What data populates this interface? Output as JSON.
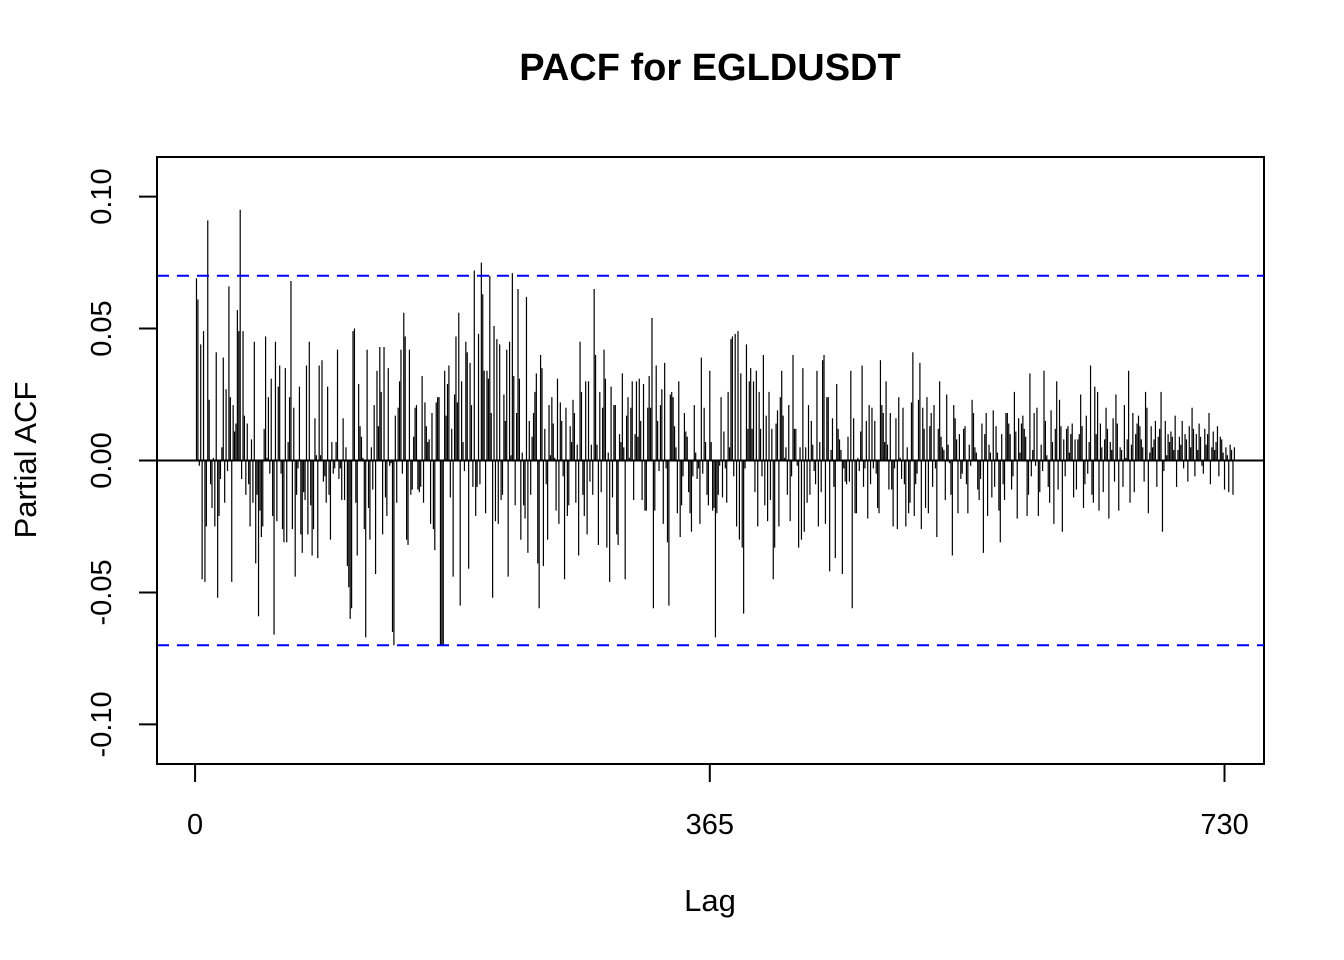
{
  "chart_data": {
    "type": "bar",
    "title": "PACF for EGLDUSDT",
    "xlabel": "Lag",
    "ylabel": "Partial ACF",
    "xlim": [
      -27,
      758
    ],
    "ylim": [
      -0.115,
      0.115
    ],
    "x_ticks": [
      0,
      365,
      730
    ],
    "x_tick_labels": [
      "0",
      "365",
      "730"
    ],
    "y_ticks": [
      -0.1,
      -0.05,
      0.0,
      0.05,
      0.1
    ],
    "y_tick_labels": [
      "-0.10",
      "-0.05",
      "0.00",
      "0.05",
      "0.10"
    ],
    "confidence_bounds": [
      0.07,
      -0.07
    ],
    "bound_color": "#0000ff",
    "bar_color": "#000000",
    "grid": false,
    "lag_start": 1,
    "lag_end": 730,
    "values": [
      0.069,
      0.061,
      -0.002,
      0.044,
      -0.045,
      0.049,
      -0.046,
      -0.025,
      0.091,
      0.023,
      -0.009,
      -0.018,
      0.001,
      -0.025,
      0.041,
      -0.052,
      -0.021,
      -0.007,
      0.005,
      0.039,
      -0.016,
      0.027,
      -0.004,
      0.066,
      0.024,
      -0.046,
      0.021,
      0.011,
      0.014,
      0.057,
      0.049,
      0.095,
      -0.007,
      0.049,
      0.017,
      -0.013,
      0.014,
      -0.009,
      -0.025,
      0.008,
      -0.016,
      0.045,
      -0.039,
      -0.013,
      -0.059,
      -0.019,
      -0.029,
      -0.025,
      0.012,
      0.047,
      0.001,
      0.024,
      -0.005,
      0.031,
      -0.021,
      -0.066,
      0.045,
      -0.023,
      0.028,
      0.036,
      -0.005,
      -0.026,
      -0.031,
      0.035,
      -0.031,
      0.007,
      0.024,
      0.068,
      -0.026,
      0.02,
      -0.044,
      -0.013,
      -0.003,
      0.028,
      -0.028,
      -0.035,
      -0.012,
      -0.015,
      0.036,
      -0.028,
      0.045,
      -0.017,
      -0.036,
      -0.026,
      0.016,
      0.002,
      -0.037,
      0.036,
      0.002,
      0.038,
      -0.008,
      -0.006,
      -0.016,
      0.028,
      -0.013,
      -0.03,
      0.007,
      -0.005,
      -0.003,
      0.007,
      0.042,
      -0.007,
      -0.003,
      -0.015,
      0.016,
      -0.015,
      0.005,
      -0.04,
      -0.048,
      -0.06,
      -0.056,
      0.049,
      0.05,
      -0.016,
      -0.036,
      0.029,
      0.013,
      0.009,
      0.001,
      -0.026,
      -0.067,
      0.042,
      -0.018,
      -0.03,
      0.005,
      -0.011,
      0.021,
      -0.043,
      0.034,
      0.013,
      0.043,
      0.026,
      -0.028,
      0.043,
      -0.014,
      -0.021,
      0.035,
      -0.002,
      -0.001,
      -0.065,
      -0.07,
      0.017,
      -0.016,
      0.02,
      0.03,
      0.042,
      -0.005,
      0.056,
      0.047,
      -0.03,
      -0.032,
      0.042,
      -0.013,
      -0.011,
      0.009,
      0.02,
      0.021,
      -0.011,
      -0.012,
      -0.01,
      0.032,
      -0.016,
      0.022,
      0.013,
      0.007,
      0.008,
      -0.024,
      0.018,
      -0.026,
      -0.034,
      0.022,
      0.024,
      0.024,
      -0.07,
      -0.07,
      -0.07,
      0.034,
      0.017,
      0.029,
      0.036,
      -0.014,
      0.012,
      -0.044,
      0.025,
      0.047,
      0.022,
      0.056,
      -0.055,
      0.03,
      0.007,
      -0.004,
      0.045,
      0.041,
      -0.041,
      0.037,
      0.021,
      -0.01,
      0.072,
      -0.021,
      -0.01,
      0.048,
      -0.009,
      0.075,
      0.063,
      0.034,
      -0.02,
      0.034,
      0.031,
      0.07,
      0.018,
      -0.052,
      0.051,
      -0.023,
      0.046,
      -0.024,
      0.044,
      -0.015,
      -0.013,
      0.025,
      0.015,
      0.042,
      -0.044,
      0.045,
      0.002,
      0.071,
      0.032,
      -0.017,
      0.018,
      0.065,
      0.031,
      -0.03,
      0.003,
      -0.017,
      -0.022,
      0.062,
      -0.035,
      0.015,
      -0.013,
      0.009,
      0.018,
      0.026,
      0.033,
      -0.039,
      -0.056,
      0.04,
      0.035,
      -0.04,
      0.012,
      -0.009,
      -0.03,
      0.021,
      0.002,
      0.024,
      0.014,
      0.001,
      -0.019,
      0.031,
      -0.024,
      0.022,
      0.015,
      -0.006,
      -0.045,
      0.02,
      -0.021,
      -0.017,
      0.013,
      0.007,
      0.023,
      0.018,
      -0.016,
      0.006,
      -0.036,
      0.045,
      0.026,
      -0.013,
      -0.021,
      0.03,
      -0.028,
      0.03,
      -0.008,
      0.006,
      -0.013,
      0.065,
      0.04,
      0.006,
      -0.032,
      0.026,
      -0.012,
      0.02,
      0.042,
      0.031,
      -0.033,
      0.003,
      -0.046,
      0.028,
      -0.014,
      0.021,
      0.021,
      -0.028,
      -0.032,
      0.01,
      0.007,
      0.033,
      0.005,
      -0.045,
      0.017,
      0.024,
      0.001,
      0.02,
      0.03,
      -0.015,
      0.01,
      0.03,
      0.009,
      0.031,
      0.015,
      -0.015,
      0.029,
      -0.019,
      -0.019,
      0.02,
      0.032,
      0.02,
      0.054,
      -0.056,
      -0.019,
      0.036,
      0.015,
      -0.004,
      0.021,
      0.027,
      -0.024,
      0.037,
      -0.003,
      -0.031,
      -0.055,
      0.025,
      0.026,
      0.024,
      0.013,
      0.005,
      -0.02,
      0.03,
      -0.029,
      -0.017,
      -0.006,
      0.018,
      0.011,
      0.009,
      -0.012,
      -0.02,
      -0.027,
      -0.006,
      0.021,
      0.003,
      -0.007,
      -0.003,
      -0.024,
      0.039,
      -0.005,
      0.02,
      0.007,
      -0.013,
      -0.017,
      0.034,
      0.007,
      -0.019,
      -0.018,
      -0.067,
      -0.02,
      -0.013,
      -0.002,
      0.024,
      -0.014,
      0.011,
      -0.003,
      -0.016,
      0.026,
      0.005,
      0.046,
      0.047,
      -0.006,
      0.048,
      -0.025,
      0.049,
      -0.03,
      0.033,
      -0.033,
      -0.058,
      -0.003,
      0.044,
      0.012,
      0.03,
      0.035,
      0.012,
      0.03,
      -0.012,
      0.034,
      -0.025,
      0.026,
      0.012,
      -0.006,
      0.04,
      -0.017,
      0.017,
      -0.023,
      0.026,
      -0.015,
      0.012,
      -0.045,
      -0.033,
      0.014,
      0.019,
      -0.025,
      0.024,
      0.034,
      0.017,
      0.001,
      0.005,
      -0.013,
      0.021,
      -0.023,
      -0.006,
      0.04,
      0.012,
      0.012,
      -0.002,
      -0.033,
      0.005,
      -0.03,
      0.035,
      -0.027,
      0.005,
      -0.016,
      0.021,
      -0.013,
      0.015,
      0.006,
      -0.004,
      -0.009,
      0.034,
      -0.025,
      0.007,
      -0.012,
      0.038,
      0.04,
      -0.024,
      0.024,
      0.024,
      -0.042,
      0.004,
      0.016,
      -0.01,
      -0.037,
      0.029,
      0.012,
      0.008,
      0.004,
      -0.043,
      -0.003,
      -0.008,
      -0.009,
      0.009,
      -0.008,
      0.034,
      -0.056,
      0.016,
      -0.02,
      -0.02,
      0.001,
      -0.004,
      0.011,
      0.036,
      -0.01,
      -0.003,
      0.015,
      -0.022,
      0.021,
      -0.009,
      0.02,
      -0.003,
      0.015,
      -0.005,
      -0.018,
      -0.02,
      0.038,
      0.021,
      0.018,
      0.007,
      0.03,
      0.006,
      -0.011,
      0.018,
      -0.011,
      -0.025,
      -0.003,
      0.016,
      -0.026,
      0.024,
      0.001,
      -0.007,
      0.02,
      -0.009,
      -0.025,
      0.005,
      -0.02,
      -0.016,
      0.022,
      0.041,
      -0.021,
      -0.009,
      -0.005,
      0.023,
      0.037,
      -0.026,
      0.02,
      0.012,
      -0.018,
      0.024,
      -0.02,
      0.013,
      0.018,
      -0.01,
      0.021,
      -0.003,
      -0.029,
      0.012,
      0.03,
      0.009,
      0.005,
      0.004,
      -0.015,
      0.025,
      0.006,
      -0.001,
      -0.013,
      -0.036,
      0.021,
      0.016,
      0.008,
      -0.02,
      0.01,
      -0.007,
      -0.005,
      0.012,
      0.013,
      -0.009,
      -0.02,
      0.006,
      -0.002,
      0.023,
      0.018,
      0.005,
      0.003,
      -0.011,
      -0.015,
      -0.007,
      0.014,
      -0.035,
      0.01,
      0.018,
      -0.021,
      0.006,
      0.003,
      -0.014,
      0.019,
      -0.01,
      0.013,
      0.003,
      -0.019,
      -0.031,
      0.01,
      -0.009,
      -0.015,
      0.018,
      0.018,
      0.014,
      0.01,
      -0.011,
      -0.006,
      0.026,
      0.011,
      -0.022,
      0.016,
      0.003,
      0.014,
      0.017,
      0.012,
      0.009,
      -0.021,
      -0.013,
      0.033,
      -0.006,
      0.004,
      0.018,
      -0.002,
      0.02,
      -0.021,
      -0.012,
      0.006,
      -0.004,
      0.034,
      0.015,
      0.002,
      -0.01,
      -0.016,
      0.019,
      0.007,
      -0.024,
      0.012,
      0.03,
      -0.011,
      0.023,
      0.013,
      -0.027,
      0.008,
      -0.006,
      0.012,
      0.013,
      0.003,
      0.01,
      0.014,
      -0.014,
      0.008,
      -0.011,
      0.008,
      0.01,
      0.025,
      0.013,
      -0.018,
      -0.009,
      0.017,
      -0.005,
      0.007,
      0.036,
      -0.013,
      -0.016,
      0.028,
      0.01,
      0.026,
      -0.019,
      0.014,
      0.005,
      -0.012,
      0.008,
      0.02,
      0.012,
      -0.022,
      0.007,
      0.004,
      0.016,
      -0.008,
      0.025,
      0.014,
      -0.019,
      0.005,
      0.004,
      -0.01,
      0.021,
      0.001,
      0.008,
      0.034,
      -0.016,
      0.006,
      0.018,
      -0.012,
      0.01,
      0.014,
      0.017,
      0.013,
      0.008,
      0.005,
      -0.008,
      0.026,
      0.02,
      -0.02,
      0.003,
      0.013,
      0.005,
      0.008,
      0.015,
      -0.01,
      0.009,
      0.012,
      0.026,
      -0.027,
      -0.004,
      0.015,
      0.002,
      0.01,
      0.007,
      0.011,
      0.009,
      0.004,
      0.017,
      -0.01,
      0.004,
      0.009,
      0.006,
      0.015,
      -0.003,
      0.01,
      0.008,
      -0.008,
      0.013,
      0.005,
      0.02,
      0.012,
      -0.006,
      0.01,
      0.004,
      0.014,
      0.009,
      -0.002,
      -0.005,
      0.012,
      0.006,
      0.01,
      0.018,
      -0.009,
      0.005,
      0.011,
      0.004,
      0.007,
      0.013,
      -0.006,
      0.009,
      0.008,
      0.003,
      -0.011,
      0.005,
      0.002,
      -0.012,
      0.006,
      0.004,
      -0.013,
      0.005
    ]
  }
}
